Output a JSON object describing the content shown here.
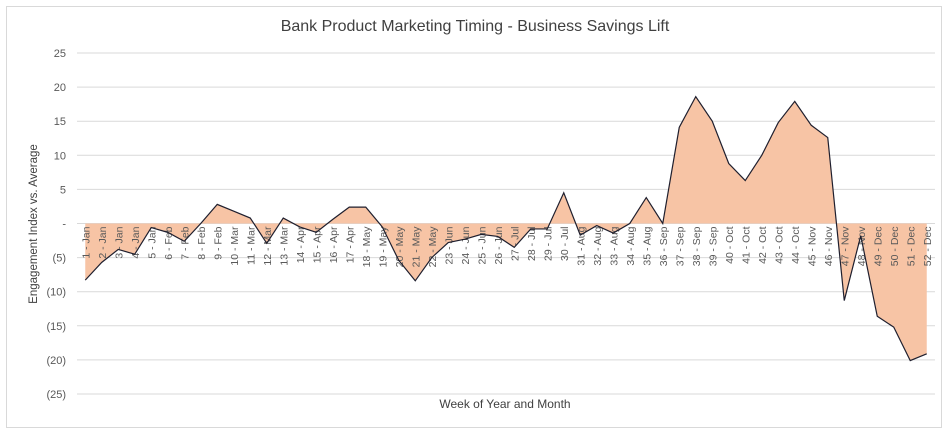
{
  "chart_data": {
    "type": "area",
    "title": "Bank Product Marketing Timing - Business Savings Lift",
    "xlabel": "Week of Year and Month",
    "ylabel": "Engagement Index vs. Average",
    "ylim": [
      -25,
      25
    ],
    "yticks": [
      25,
      20,
      15,
      10,
      5,
      0,
      -5,
      -10,
      -15,
      -20,
      -25
    ],
    "ytick_labels": [
      "25",
      "20",
      "15",
      "10",
      "5",
      "-",
      "(5)",
      "(10)",
      "(15)",
      "(20)",
      "(25)"
    ],
    "grid": true,
    "legend": "none",
    "fill_color": "#f7c4a5",
    "line_color": "#1f1f2e",
    "categories": [
      "1 - Jan",
      "2 - Jan",
      "3 - Jan",
      "4 - Jan",
      "5 - Jan",
      "6 - Feb",
      "7 - Feb",
      "8 - Feb",
      "9 - Feb",
      "10 - Mar",
      "11 - Mar",
      "12 - Mar",
      "13 - Mar",
      "14 - Apr",
      "15 - Apr",
      "16 - Apr",
      "17 - Apr",
      "18 - May",
      "19 - May",
      "20 - May",
      "21 - May",
      "22 - May",
      "23 - Jun",
      "24 - Jun",
      "25 - Jun",
      "26 - Jun",
      "27 - Jul",
      "28 - Jul",
      "29 - Jul",
      "30 - Jul",
      "31 - Aug",
      "32 - Aug",
      "33 - Aug",
      "34 - Aug",
      "35 - Aug",
      "36 - Sep",
      "37 - Sep",
      "38 - Sep",
      "39 - Sep",
      "40 - Oct",
      "41 - Oct",
      "42 - Oct",
      "43 - Oct",
      "44 - Oct",
      "45 - Nov",
      "46 - Nov",
      "47 - Nov",
      "48 - Nov",
      "49 - Dec",
      "50 - Dec",
      "51 - Dec",
      "52 - Dec"
    ],
    "values": [
      -8.3,
      -5.7,
      -3.8,
      -4.5,
      -0.6,
      -1.3,
      -2.6,
      0.0,
      2.8,
      1.8,
      0.8,
      -2.9,
      0.8,
      -0.5,
      -1.3,
      0.6,
      2.4,
      2.4,
      -0.5,
      -5.4,
      -8.4,
      -5.0,
      -2.8,
      -2.3,
      -1.6,
      -1.9,
      -3.5,
      -0.8,
      -0.8,
      4.5,
      -1.7,
      -0.3,
      -1.4,
      0.0,
      3.8,
      0.0,
      14.1,
      18.6,
      15.0,
      8.8,
      6.3,
      10.0,
      14.8,
      17.9,
      14.4,
      12.6,
      -11.3,
      -1.8,
      -13.6,
      -15.2,
      -20.1,
      -19.1
    ]
  }
}
